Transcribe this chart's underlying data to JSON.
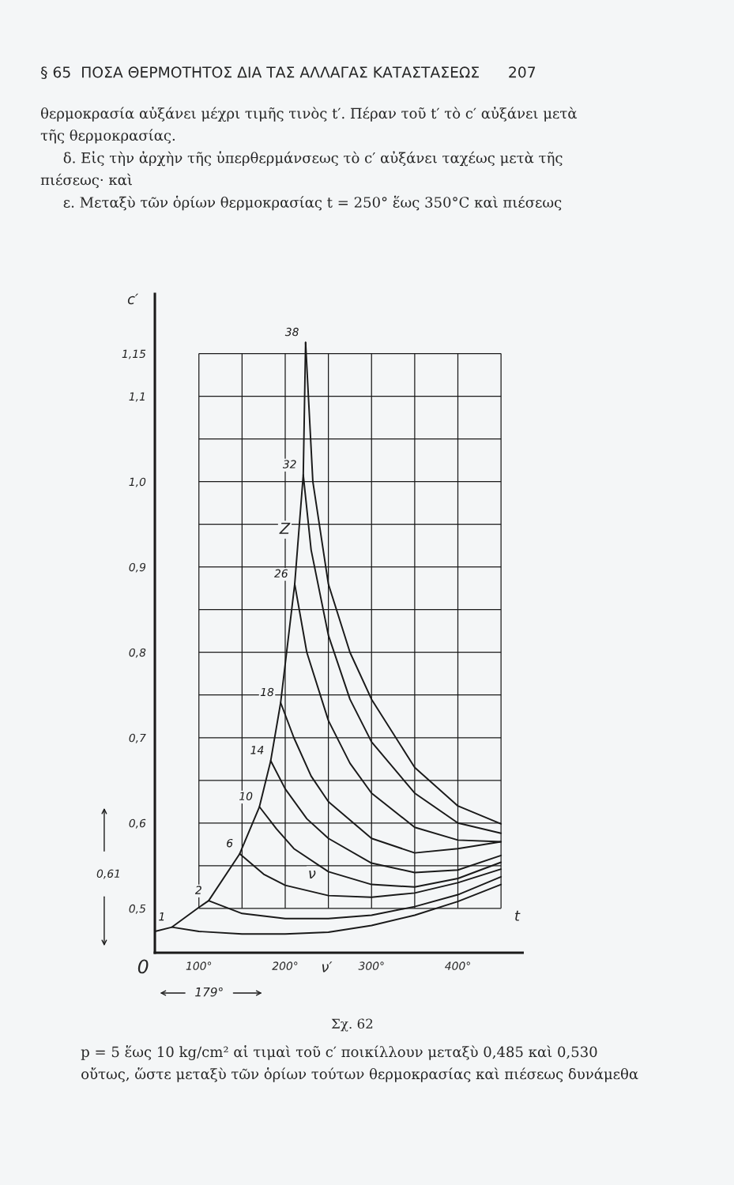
{
  "chart_data": {
    "type": "line",
    "title": "§ 65  ΠΟΣΑ ΘΕΡΜΟΤΗΤΟΣ ΔΙΑ ΤΑΣ ΑΛΛΑΓΑΣ ΚΑΤΑΣΤΑΣΕΩΣ      207",
    "subtitle": "θερμοκρασία αὐξάνει μέχρι τιμῆς τινὸς t′. Πέραν τοῦ t′ τὸ c′ αὐξάνει μετὰ\nτῆς θερμοκρασίας.\n     δ. Εἰς τὴν ἀρχὴν τῆς ὑπερθερμάνσεως τὸ c′ αὐξάνει ταχέως μετὰ τῆς\nπιέσεως· καὶ\n     ε. Μεταξὺ τῶν ὁρίων θερμοκρασίας t = 250° ἕως 350°C καὶ πιέσεως",
    "xlabel": "t",
    "ylabel": "c′",
    "xlim": [
      49,
      475
    ],
    "ylim": [
      0.448,
      1.22
    ],
    "xticks": [
      {
        "value": 100,
        "label": "100°"
      },
      {
        "value": 150,
        "label": null
      },
      {
        "value": 200,
        "label": "200°"
      },
      {
        "value": 250,
        "label": null
      },
      {
        "value": 300,
        "label": "300°"
      },
      {
        "value": 350,
        "label": null
      },
      {
        "value": 400,
        "label": "400°"
      },
      {
        "value": 450,
        "label": null
      }
    ],
    "yticks": [
      {
        "value": 0.5,
        "label": "0,5"
      },
      {
        "value": 0.55,
        "label": null
      },
      {
        "value": 0.6,
        "label": "0,6"
      },
      {
        "value": 0.65,
        "label": null
      },
      {
        "value": 0.7,
        "label": "0,7"
      },
      {
        "value": 0.75,
        "label": null
      },
      {
        "value": 0.8,
        "label": "0,8"
      },
      {
        "value": 0.85,
        "label": null
      },
      {
        "value": 0.9,
        "label": "0,9"
      },
      {
        "value": 0.95,
        "label": null
      },
      {
        "value": 1.0,
        "label": "1,0"
      },
      {
        "value": 1.05,
        "label": null
      },
      {
        "value": 1.1,
        "label": "1,1"
      },
      {
        "value": 1.15,
        "label": "1,15"
      }
    ],
    "grid": true,
    "series": [
      {
        "color": "#1a1a1a",
        "x": [
          49.1,
          68.8,
          99.8,
          111.3,
          147.3,
          170.1,
          183.2,
          194.7,
          211,
          220.9,
          223.6
        ],
        "values": [
          0.473,
          0.478,
          0.501,
          0.509,
          0.564,
          0.619,
          0.673,
          0.741,
          0.88,
          1.008,
          1.163
        ]
      },
      {
        "name": "1",
        "color": "#1a1a1a",
        "x": [
          68.8,
          100,
          150,
          200,
          250,
          300,
          350,
          400,
          450
        ],
        "values": [
          0.478,
          0.473,
          0.47,
          0.47,
          0.472,
          0.48,
          0.492,
          0.508,
          0.528
        ]
      },
      {
        "name": "2",
        "color": "#1a1a1a",
        "x": [
          111.3,
          150,
          200,
          250,
          300,
          350,
          400,
          450
        ],
        "values": [
          0.509,
          0.494,
          0.488,
          0.488,
          0.492,
          0.502,
          0.516,
          0.537
        ]
      },
      {
        "name": "6",
        "color": "#1a1a1a",
        "x": [
          147.3,
          175,
          200,
          250,
          300,
          350,
          400,
          450
        ],
        "values": [
          0.564,
          0.54,
          0.527,
          0.515,
          0.513,
          0.518,
          0.53,
          0.546
        ]
      },
      {
        "name": "10",
        "color": "#1a1a1a",
        "x": [
          170.1,
          190,
          210,
          250,
          300,
          350,
          400,
          450
        ],
        "values": [
          0.619,
          0.593,
          0.57,
          0.543,
          0.528,
          0.525,
          0.535,
          0.554
        ]
      },
      {
        "name": "14",
        "color": "#1a1a1a",
        "x": [
          183.2,
          200,
          225,
          250,
          300,
          350,
          400,
          450
        ],
        "values": [
          0.673,
          0.64,
          0.605,
          0.582,
          0.553,
          0.542,
          0.545,
          0.562
        ]
      },
      {
        "name": "18",
        "color": "#1a1a1a",
        "x": [
          194.7,
          210,
          230,
          250,
          300,
          350,
          400,
          450
        ],
        "values": [
          0.741,
          0.7,
          0.655,
          0.625,
          0.582,
          0.565,
          0.57,
          0.578
        ]
      },
      {
        "name": "26",
        "color": "#1a1a1a",
        "x": [
          211,
          225,
          250,
          275,
          300,
          350,
          400,
          450
        ],
        "values": [
          0.88,
          0.8,
          0.72,
          0.67,
          0.635,
          0.595,
          0.58,
          0.578
        ]
      },
      {
        "name": "32",
        "color": "#1a1a1a",
        "x": [
          220.9,
          230,
          250,
          275,
          300,
          350,
          400,
          450
        ],
        "values": [
          1.008,
          0.92,
          0.82,
          0.745,
          0.695,
          0.635,
          0.6,
          0.588
        ]
      },
      {
        "name": "38",
        "color": "#1a1a1a",
        "x": [
          223.6,
          232,
          250,
          275,
          300,
          350,
          400,
          450
        ],
        "values": [
          1.163,
          1.0,
          0.88,
          0.8,
          0.745,
          0.665,
          0.62,
          0.599
        ]
      }
    ],
    "annotations": [
      "Z",
      "ν",
      "ν′",
      "0,61",
      "179°",
      "0",
      "Σχ. 62",
      "p = 5 ἕως 10 kg/cm² αἱ τιμαὶ τοῦ c′ ποικίλλουν μεταξὺ 0,485 καὶ 0,530\nοὔτως, ὥστε μεταξὺ τῶν ὁρίων τούτων θερμοκρασίας καὶ πιέσεως δυνάμεθα"
    ]
  }
}
